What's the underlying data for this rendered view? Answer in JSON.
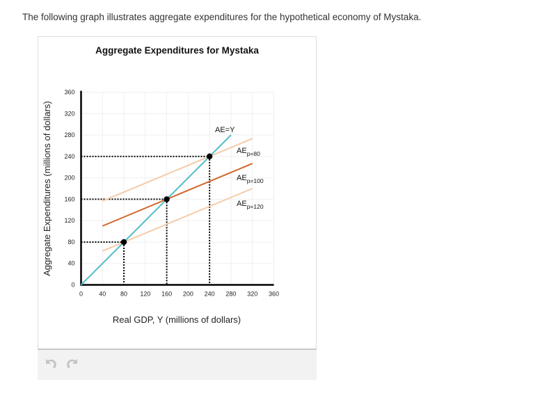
{
  "intro_text": "The following graph illustrates aggregate expenditures for the hypothetical economy of Mystaka.",
  "toolbar": {
    "undo_icon": "undo-icon",
    "redo_icon": "redo-icon"
  },
  "colors": {
    "ae_equals_y": "#4cbdc8",
    "ae_p80": "#f5cba8",
    "ae_p100": "#d2662b",
    "ae_p120": "#f5cba8",
    "grid": "#efefef",
    "axis": "#000000",
    "guide": "#000000"
  },
  "chart_data": {
    "type": "line",
    "title": "Aggregate Expenditures for Mystaka",
    "xlabel": "Real GDP, Y (millions of dollars)",
    "ylabel": "Aggregate Expenditures (millions of dollars)",
    "xlim": [
      0,
      360
    ],
    "ylim": [
      0,
      360
    ],
    "xticks": [
      0,
      40,
      80,
      120,
      160,
      200,
      240,
      280,
      320,
      360
    ],
    "yticks": [
      0,
      40,
      80,
      120,
      160,
      200,
      240,
      280,
      320,
      360
    ],
    "grid": true,
    "series": [
      {
        "name": "AE=Y",
        "label_main": "AE=Y",
        "label_sub": "",
        "x": [
          0,
          280
        ],
        "y": [
          0,
          280
        ]
      },
      {
        "name": "AE p=80",
        "label_main": "AE",
        "label_sub": "p=80",
        "x": [
          40,
          320
        ],
        "y": [
          156.7,
          273.3
        ]
      },
      {
        "name": "AE p=100",
        "label_main": "AE",
        "label_sub": "p=100",
        "x": [
          40,
          320
        ],
        "y": [
          110,
          226.7
        ]
      },
      {
        "name": "AE p=120",
        "label_main": "AE",
        "label_sub": "p=120",
        "x": [
          40,
          320
        ],
        "y": [
          63.3,
          180
        ]
      }
    ],
    "equilibrium_points": [
      {
        "x": 80,
        "y": 80,
        "series": "AE p=120"
      },
      {
        "x": 160,
        "y": 160,
        "series": "AE p=100"
      },
      {
        "x": 240,
        "y": 240,
        "series": "AE p=80"
      }
    ]
  }
}
